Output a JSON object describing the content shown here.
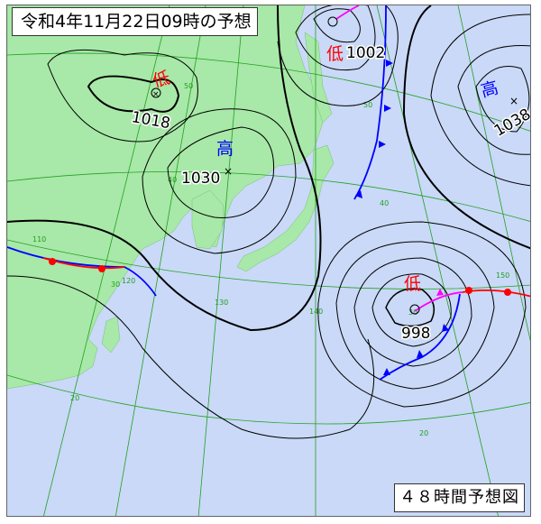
{
  "title": "令和4年11月22日09時の予想",
  "forecast_label": "４８時間予想図",
  "colors": {
    "sea": "#c9d9f7",
    "land": "#a8e8a8",
    "grid": "#22a022",
    "isobar": "#000000",
    "low": "#ff0000",
    "high": "#0000ff",
    "warm_front": "#ff0000",
    "cold_front": "#0000ff",
    "occluded_front": "#ff00ff"
  },
  "systems": [
    {
      "type": "low",
      "symbol": "低",
      "pressure": "1018"
    },
    {
      "type": "high",
      "symbol": "高",
      "pressure": "1030"
    },
    {
      "type": "low",
      "symbol": "低",
      "pressure": "1002"
    },
    {
      "type": "high",
      "symbol": "高",
      "pressure": "1038"
    },
    {
      "type": "low",
      "symbol": "低",
      "pressure": "998"
    }
  ],
  "grid_labels": {
    "lat": [
      "50",
      "40",
      "30",
      "20",
      "50",
      "40",
      "30",
      "20"
    ],
    "lon": [
      "110",
      "120",
      "130",
      "140",
      "150"
    ]
  }
}
